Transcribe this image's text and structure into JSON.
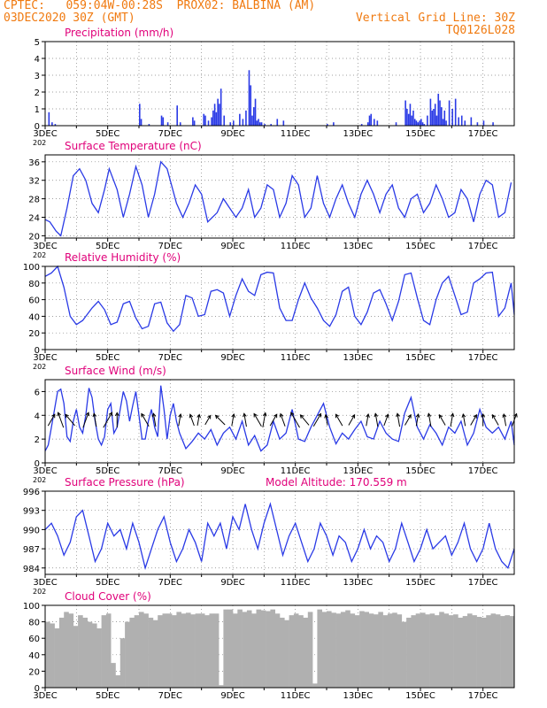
{
  "header": {
    "line1_left": "CPTEC:   059:04W-00:28S  PROX02: BALBINA (AM)",
    "line2_left": "03DEC2020 30Z (GMT)",
    "line2_right": "Vertical Grid Line: 30Z",
    "line3_right": "TQ0126L028"
  },
  "colors": {
    "header": "#f07a10",
    "titles": "#e0007a",
    "series": "#2a3ae6",
    "cloud": "#b0b0b0",
    "grid": "#808080",
    "arrows": "#000000"
  },
  "x_ticks": [
    "3DEC",
    "5DEC",
    "7DEC",
    "9DEC",
    "11DEC",
    "13DEC",
    "15DEC",
    "17DEC"
  ],
  "chart_data": [
    {
      "type": "bar",
      "title": "Precipitation (mm/h)",
      "ylim": [
        0,
        5
      ],
      "yticks": [
        0,
        1,
        2,
        3,
        4,
        5
      ],
      "x_label_extra": "202",
      "x": [
        3.1,
        3.2,
        3.3,
        6.0,
        6.05,
        6.3,
        6.7,
        6.75,
        6.9,
        7.2,
        7.3,
        7.7,
        7.75,
        8.05,
        8.1,
        8.2,
        8.3,
        8.35,
        8.4,
        8.45,
        8.5,
        8.55,
        8.6,
        8.7,
        8.9,
        9.0,
        9.2,
        9.3,
        9.4,
        9.5,
        9.55,
        9.6,
        9.65,
        9.7,
        9.75,
        9.8,
        9.85,
        9.9,
        10.0,
        10.2,
        10.4,
        10.6,
        12.0,
        12.2,
        13.1,
        13.3,
        13.35,
        13.4,
        13.5,
        13.6,
        14.2,
        14.5,
        14.55,
        14.6,
        14.65,
        14.7,
        14.75,
        14.8,
        14.85,
        14.9,
        14.95,
        15.0,
        15.05,
        15.1,
        15.2,
        15.3,
        15.35,
        15.4,
        15.45,
        15.5,
        15.55,
        15.6,
        15.65,
        15.7,
        15.75,
        15.8,
        15.9,
        16.0,
        16.1,
        16.2,
        16.3,
        16.4,
        16.6,
        16.8,
        17.0,
        17.3
      ],
      "values": [
        0.8,
        0.2,
        0.1,
        1.3,
        0.4,
        0.1,
        0.6,
        0.5,
        0.2,
        1.2,
        0.2,
        0.5,
        0.3,
        0.7,
        0.6,
        0.3,
        0.5,
        0.9,
        1.3,
        0.8,
        1.6,
        1.3,
        2.2,
        0.6,
        0.2,
        0.3,
        0.7,
        0.4,
        0.9,
        3.3,
        2.4,
        0.6,
        1.1,
        1.6,
        0.3,
        0.4,
        0.2,
        0.2,
        0.1,
        0.1,
        0.4,
        0.3,
        0.1,
        0.2,
        0.1,
        0.2,
        0.6,
        0.7,
        0.4,
        0.3,
        0.2,
        1.5,
        1.0,
        0.7,
        1.3,
        0.6,
        0.9,
        0.4,
        0.3,
        0.2,
        0.3,
        0.4,
        0.2,
        0.1,
        0.6,
        1.6,
        0.9,
        1.0,
        1.3,
        0.6,
        1.9,
        1.5,
        1.1,
        0.4,
        0.9,
        0.3,
        1.5,
        1.0,
        1.6,
        0.5,
        0.6,
        0.3,
        0.5,
        0.2,
        0.3,
        0.2
      ]
    },
    {
      "type": "line",
      "title": "Surface Temperature (nC)",
      "ylim": [
        19.5,
        37.5
      ],
      "yticks": [
        20,
        24,
        28,
        32,
        36
      ],
      "x_label_extra": "202",
      "x": [
        3.0,
        3.15,
        3.35,
        3.5,
        3.7,
        3.9,
        4.1,
        4.3,
        4.5,
        4.7,
        4.9,
        5.05,
        5.3,
        5.5,
        5.7,
        5.9,
        6.1,
        6.3,
        6.5,
        6.7,
        6.9,
        7.2,
        7.4,
        7.6,
        7.8,
        8.0,
        8.2,
        8.5,
        8.7,
        8.9,
        9.1,
        9.3,
        9.5,
        9.7,
        9.9,
        10.1,
        10.3,
        10.5,
        10.7,
        10.9,
        11.1,
        11.3,
        11.5,
        11.7,
        11.9,
        12.1,
        12.3,
        12.5,
        12.7,
        12.9,
        13.1,
        13.3,
        13.5,
        13.7,
        13.9,
        14.1,
        14.3,
        14.5,
        14.7,
        14.9,
        15.1,
        15.3,
        15.5,
        15.7,
        15.9,
        16.1,
        16.3,
        16.5,
        16.7,
        16.9,
        17.1,
        17.3,
        17.5,
        17.7,
        17.9
      ],
      "values": [
        23.5,
        23,
        21,
        20,
        26,
        33,
        34.5,
        32,
        27,
        25,
        30,
        34.5,
        30,
        24,
        29,
        35,
        31,
        24,
        29,
        36,
        34.5,
        27,
        24,
        27,
        31,
        29,
        23,
        25,
        28,
        26,
        24,
        26,
        30,
        24,
        26,
        31,
        30,
        24,
        27,
        33,
        31,
        24,
        26,
        33,
        27,
        24,
        28,
        31,
        27,
        24,
        29,
        32,
        29,
        25,
        29,
        31,
        26,
        24,
        28,
        29,
        25,
        27,
        31,
        28,
        24,
        25,
        30,
        28,
        23,
        29,
        32,
        31,
        24,
        25,
        31.5
      ],
      "series_name": ""
    },
    {
      "type": "line",
      "title": "Relative Humidity (%)",
      "ylim": [
        0,
        100
      ],
      "yticks": [
        0,
        20,
        40,
        60,
        80,
        100
      ],
      "x_label_extra": "202",
      "x": [
        3.0,
        3.2,
        3.4,
        3.6,
        3.8,
        4.0,
        4.2,
        4.5,
        4.7,
        4.9,
        5.1,
        5.3,
        5.5,
        5.7,
        5.9,
        6.1,
        6.3,
        6.5,
        6.7,
        6.9,
        7.1,
        7.3,
        7.5,
        7.7,
        7.9,
        8.1,
        8.3,
        8.5,
        8.7,
        8.9,
        9.1,
        9.3,
        9.5,
        9.7,
        9.9,
        10.1,
        10.3,
        10.5,
        10.7,
        10.9,
        11.1,
        11.3,
        11.5,
        11.7,
        11.9,
        12.1,
        12.3,
        12.5,
        12.7,
        12.9,
        13.1,
        13.3,
        13.5,
        13.7,
        13.9,
        14.1,
        14.3,
        14.5,
        14.7,
        14.9,
        15.1,
        15.3,
        15.5,
        15.7,
        15.9,
        16.1,
        16.3,
        16.5,
        16.7,
        16.9,
        17.1,
        17.3,
        17.5,
        17.7,
        17.9,
        18.0
      ],
      "values": [
        88,
        92,
        100,
        75,
        40,
        30,
        35,
        50,
        58,
        48,
        30,
        33,
        55,
        58,
        38,
        25,
        28,
        55,
        57,
        32,
        22,
        30,
        65,
        62,
        40,
        42,
        70,
        72,
        68,
        40,
        65,
        85,
        70,
        65,
        90,
        93,
        92,
        50,
        35,
        35,
        60,
        80,
        62,
        50,
        35,
        28,
        42,
        70,
        75,
        40,
        30,
        45,
        68,
        72,
        55,
        35,
        58,
        90,
        92,
        62,
        35,
        30,
        60,
        80,
        88,
        65,
        42,
        45,
        80,
        85,
        92,
        93,
        40,
        50,
        80,
        42
      ],
      "series_name": ""
    },
    {
      "type": "line",
      "title": "Surface Wind (m/s)",
      "ylim": [
        0,
        7
      ],
      "yticks": [
        0,
        2,
        4,
        6
      ],
      "x_label_extra": "202",
      "x": [
        3.0,
        3.1,
        3.2,
        3.3,
        3.4,
        3.5,
        3.6,
        3.7,
        3.8,
        3.9,
        4.0,
        4.1,
        4.2,
        4.3,
        4.4,
        4.5,
        4.6,
        4.7,
        4.8,
        4.9,
        5.0,
        5.1,
        5.2,
        5.3,
        5.4,
        5.5,
        5.6,
        5.7,
        5.8,
        5.9,
        6.0,
        6.1,
        6.2,
        6.3,
        6.4,
        6.5,
        6.6,
        6.7,
        6.8,
        6.9,
        7.0,
        7.1,
        7.2,
        7.3,
        7.5,
        7.7,
        7.9,
        8.1,
        8.3,
        8.5,
        8.7,
        8.9,
        9.1,
        9.3,
        9.5,
        9.7,
        9.9,
        10.1,
        10.3,
        10.5,
        10.7,
        10.9,
        11.1,
        11.3,
        11.5,
        11.7,
        11.9,
        12.1,
        12.3,
        12.5,
        12.7,
        12.9,
        13.1,
        13.3,
        13.5,
        13.7,
        13.9,
        14.1,
        14.3,
        14.5,
        14.7,
        14.9,
        15.1,
        15.3,
        15.5,
        15.7,
        15.9,
        16.1,
        16.3,
        16.5,
        16.7,
        16.9,
        17.1,
        17.3,
        17.5,
        17.7,
        17.9,
        18.0
      ],
      "values": [
        1,
        1.5,
        3,
        4.5,
        6,
        6.2,
        5,
        2.2,
        1.8,
        3.5,
        4.5,
        3,
        2.5,
        4,
        6.3,
        5.5,
        3.5,
        2,
        1.5,
        2.2,
        4.5,
        5,
        2.5,
        3,
        4.5,
        6,
        5.2,
        3.5,
        4.8,
        6,
        4,
        2,
        2,
        3.5,
        4.5,
        3,
        2.2,
        6.5,
        4.5,
        2,
        4,
        5,
        3.5,
        2.5,
        1.2,
        1.8,
        2.5,
        2,
        2.8,
        1.5,
        2.5,
        3,
        2,
        3.5,
        1.5,
        2.3,
        1,
        1.5,
        3.5,
        2,
        2.5,
        4.5,
        2,
        1.8,
        3,
        4,
        5,
        3,
        1.6,
        2.5,
        2,
        2.8,
        3.5,
        2.2,
        2,
        3.5,
        2.5,
        2,
        1.8,
        4.2,
        5.5,
        3,
        2,
        3.2,
        2.5,
        1.5,
        3,
        2.5,
        3.5,
        1.5,
        2.5,
        4.5,
        3,
        2.5,
        3,
        2,
        3.5,
        1.5
      ]
    },
    {
      "type": "line",
      "title": "Surface Pressure (hPa)",
      "subtitle": "Model Altitude: 170.559  m",
      "ylim": [
        983,
        996
      ],
      "yticks": [
        984,
        987,
        990,
        993,
        996
      ],
      "x_label_extra": "202",
      "x": [
        3.0,
        3.2,
        3.4,
        3.6,
        3.8,
        4.0,
        4.2,
        4.4,
        4.6,
        4.8,
        5.0,
        5.2,
        5.4,
        5.6,
        5.8,
        6.0,
        6.2,
        6.4,
        6.6,
        6.8,
        7.0,
        7.2,
        7.4,
        7.6,
        7.8,
        8.0,
        8.2,
        8.4,
        8.6,
        8.8,
        9.0,
        9.2,
        9.4,
        9.6,
        9.8,
        10.0,
        10.2,
        10.4,
        10.6,
        10.8,
        11.0,
        11.2,
        11.4,
        11.6,
        11.8,
        12.0,
        12.2,
        12.4,
        12.6,
        12.8,
        13.0,
        13.2,
        13.4,
        13.6,
        13.8,
        14.0,
        14.2,
        14.4,
        14.6,
        14.8,
        15.0,
        15.2,
        15.4,
        15.6,
        15.8,
        16.0,
        16.2,
        16.4,
        16.6,
        16.8,
        17.0,
        17.2,
        17.4,
        17.6,
        17.8,
        18.0
      ],
      "values": [
        990,
        991,
        989,
        986,
        988,
        992,
        993,
        989,
        985,
        987,
        991,
        989,
        990,
        987,
        991,
        988,
        984,
        987,
        990,
        992,
        988,
        985,
        987,
        990,
        988,
        985,
        991,
        989,
        991,
        987,
        992,
        990,
        994,
        990,
        987,
        991,
        994,
        990,
        986,
        989,
        991,
        988,
        985,
        987,
        991,
        989,
        986,
        989,
        988,
        985,
        987,
        990,
        987,
        989,
        988,
        985,
        987,
        991,
        988,
        985,
        987,
        990,
        987,
        988,
        989,
        986,
        988,
        991,
        987,
        985,
        987,
        991,
        987,
        985,
        984,
        987
      ]
    },
    {
      "type": "bar",
      "title": "Cloud Cover (%)",
      "ylim": [
        0,
        100
      ],
      "yticks": [
        0,
        20,
        40,
        60,
        80,
        100
      ],
      "x_label_extra": "",
      "x": [
        3.0,
        3.15,
        3.3,
        3.45,
        3.6,
        3.75,
        3.9,
        4.05,
        4.2,
        4.35,
        4.5,
        4.65,
        4.8,
        4.95,
        5.1,
        5.25,
        5.4,
        5.55,
        5.7,
        5.85,
        6.0,
        6.15,
        6.3,
        6.45,
        6.6,
        6.75,
        6.9,
        7.05,
        7.2,
        7.35,
        7.5,
        7.65,
        7.8,
        7.95,
        8.1,
        8.25,
        8.4,
        8.55,
        8.7,
        8.85,
        9.0,
        9.15,
        9.3,
        9.45,
        9.6,
        9.75,
        9.9,
        10.05,
        10.2,
        10.35,
        10.5,
        10.65,
        10.8,
        10.95,
        11.1,
        11.25,
        11.4,
        11.55,
        11.7,
        11.85,
        12.0,
        12.15,
        12.3,
        12.45,
        12.6,
        12.75,
        12.9,
        13.05,
        13.2,
        13.35,
        13.5,
        13.65,
        13.8,
        13.95,
        14.1,
        14.25,
        14.4,
        14.55,
        14.7,
        14.85,
        15.0,
        15.15,
        15.3,
        15.45,
        15.6,
        15.75,
        15.9,
        16.05,
        16.2,
        16.35,
        16.5,
        16.65,
        16.8,
        16.95,
        17.1,
        17.25,
        17.4,
        17.55,
        17.7,
        17.85
      ],
      "values": [
        80,
        78,
        72,
        85,
        92,
        90,
        75,
        88,
        85,
        80,
        78,
        72,
        88,
        90,
        30,
        15,
        60,
        80,
        85,
        88,
        92,
        90,
        85,
        82,
        88,
        90,
        90,
        88,
        92,
        90,
        91,
        89,
        90,
        90,
        88,
        90,
        90,
        3,
        95,
        95,
        90,
        95,
        92,
        94,
        90,
        95,
        94,
        93,
        95,
        90,
        85,
        82,
        88,
        90,
        88,
        85,
        92,
        5,
        95,
        92,
        93,
        91,
        90,
        92,
        94,
        90,
        88,
        93,
        92,
        90,
        89,
        92,
        88,
        90,
        91,
        89,
        80,
        85,
        88,
        90,
        91,
        89,
        90,
        88,
        92,
        90,
        88,
        89,
        85,
        87,
        90,
        88,
        86,
        85,
        88,
        90,
        89,
        87,
        88,
        87
      ]
    },
    {
      "type": "vector",
      "title": "Wind direction arrows",
      "x": [
        3.2,
        3.5,
        3.8,
        4.3,
        4.6,
        5.0,
        5.3,
        6.2,
        6.5,
        7.3,
        7.7,
        7.9,
        8.2,
        8.6,
        9.0,
        9.4,
        9.8,
        10.0,
        10.3,
        10.6,
        11.0,
        11.3,
        11.7,
        12.0,
        12.4,
        12.8,
        13.3,
        13.6,
        13.9,
        14.3,
        14.6,
        14.9,
        15.3,
        15.7,
        16.0,
        16.4,
        16.7,
        17.0,
        17.4,
        17.7,
        18.0
      ],
      "angle_deg": [
        60,
        110,
        130,
        70,
        100,
        60,
        90,
        120,
        100,
        80,
        110,
        80,
        60,
        135,
        80,
        100,
        120,
        80,
        60,
        110,
        120,
        130,
        60,
        100,
        120,
        60,
        80,
        100,
        70,
        100,
        60,
        80,
        100,
        120,
        80,
        100,
        60,
        90,
        120,
        100,
        70
      ],
      "magnitude": [
        3,
        4,
        3.5,
        4,
        3,
        4.5,
        3.5,
        3.5,
        3,
        2.5,
        2.5,
        2.2,
        2,
        3,
        2.5,
        3,
        3.5,
        3.5,
        3,
        3,
        4.5,
        3,
        3.5,
        2,
        3,
        2.5,
        2.5,
        3,
        2.5,
        3,
        2.5,
        2.5,
        3,
        2.5,
        3,
        2.5,
        2.5,
        2.5,
        2.5,
        2.5,
        3
      ]
    }
  ]
}
